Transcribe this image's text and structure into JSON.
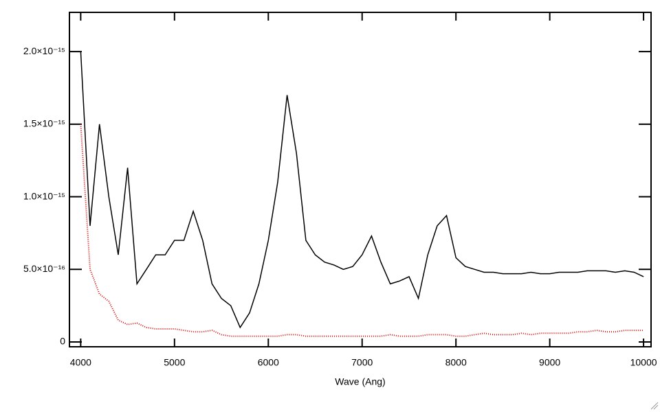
{
  "chart_data": {
    "type": "line",
    "x_label": "Wave (Ang)",
    "x": [
      4000,
      4100,
      4200,
      4300,
      4400,
      4500,
      4600,
      4700,
      4800,
      4900,
      5000,
      5100,
      5200,
      5300,
      5400,
      5500,
      5600,
      5700,
      5800,
      5900,
      6000,
      6100,
      6200,
      6300,
      6400,
      6500,
      6600,
      6700,
      6800,
      6900,
      7000,
      7100,
      7200,
      7300,
      7400,
      7500,
      7600,
      7700,
      7800,
      7900,
      8000,
      8100,
      8200,
      8300,
      8400,
      8500,
      8600,
      8700,
      8800,
      8900,
      9000,
      9100,
      9200,
      9300,
      9400,
      9500,
      9600,
      9700,
      9800,
      9900,
      10000
    ],
    "series": [
      {
        "color": "#000000",
        "style": "solid",
        "values": [
          2e-15,
          8e-16,
          1.5e-15,
          1e-15,
          6e-16,
          1.2e-15,
          4e-16,
          5e-16,
          6e-16,
          6e-16,
          7e-16,
          7e-16,
          9e-16,
          7e-16,
          4e-16,
          3e-16,
          2.5e-16,
          1e-16,
          2e-16,
          4e-16,
          7e-16,
          1.1e-15,
          1.7e-15,
          1.3e-15,
          7e-16,
          6e-16,
          5.5e-16,
          5.3e-16,
          5e-16,
          5.2e-16,
          6e-16,
          7.3e-16,
          5.5e-16,
          4e-16,
          4.2e-16,
          4.5e-16,
          3e-16,
          6e-16,
          8e-16,
          8.7e-16,
          5.8e-16,
          5.2e-16,
          5e-16,
          4.8e-16,
          4.8e-16,
          4.7e-16,
          4.7e-16,
          4.7e-16,
          4.8e-16,
          4.7e-16,
          4.7e-16,
          4.8e-16,
          4.8e-16,
          4.8e-16,
          4.9e-16,
          4.9e-16,
          4.9e-16,
          4.8e-16,
          4.9e-16,
          4.8e-16,
          4.5e-16
        ]
      },
      {
        "color": "#dd0000",
        "style": "dotted",
        "values": [
          1.5e-15,
          5e-16,
          3.3e-16,
          2.8e-16,
          1.5e-16,
          1.2e-16,
          1.3e-16,
          1e-16,
          9e-17,
          9e-17,
          9e-17,
          8e-17,
          7e-17,
          7e-17,
          8e-17,
          5e-17,
          4e-17,
          4e-17,
          4e-17,
          4e-17,
          4e-17,
          4e-17,
          5e-17,
          5e-17,
          4e-17,
          4e-17,
          4e-17,
          4e-17,
          4e-17,
          4e-17,
          4e-17,
          4e-17,
          4e-17,
          5e-17,
          4e-17,
          4e-17,
          4e-17,
          5e-17,
          5e-17,
          5e-17,
          4e-17,
          4e-17,
          5e-17,
          6e-17,
          5e-17,
          5e-17,
          5e-17,
          6e-17,
          5e-17,
          6e-17,
          6e-17,
          6e-17,
          6e-17,
          7e-17,
          7e-17,
          8e-17,
          7e-17,
          7e-17,
          8e-17,
          8e-17,
          8e-17
        ]
      }
    ],
    "xlim": [
      3880,
      10080
    ],
    "ylim": [
      -3.3e-17,
      2.27e-15
    ],
    "xticks": [
      4000,
      5000,
      6000,
      7000,
      8000,
      9000,
      10000
    ],
    "yticks": [
      0,
      {
        "value": 5e-16,
        "label": "5.0×10⁻¹⁶"
      },
      {
        "value": 1e-15,
        "label": "1.0×10⁻¹⁵"
      },
      {
        "value": 1.5e-15,
        "label": "1.5×10⁻¹⁵"
      },
      {
        "value": 2e-15,
        "label": "2.0×10⁻¹⁵"
      }
    ]
  }
}
